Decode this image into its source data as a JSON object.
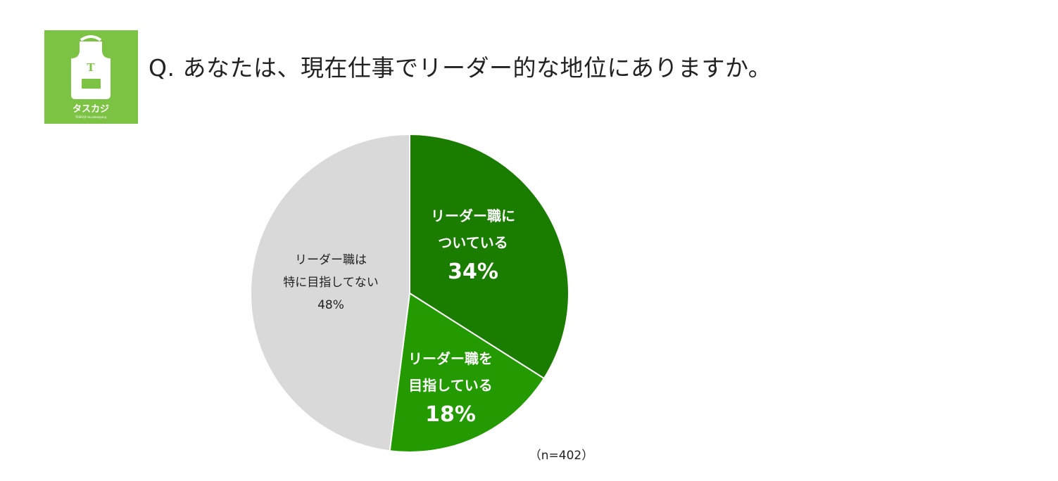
{
  "logo": {
    "icon": "apron-logo",
    "brand": "タスカジ",
    "tagline": "TASKAJI housekeeping",
    "letter": "T",
    "color": "#7cc243"
  },
  "question": "Q. あなたは、現在仕事でリーダー的な地位にありますか。",
  "sample_size": "（n=402）",
  "chart_data": {
    "type": "pie",
    "title": "Q. あなたは、現在仕事でリーダー的な地位にありますか。",
    "start": "12 o'clock",
    "direction": "clockwise",
    "slices": [
      {
        "label": "リーダー職についている",
        "label_lines": [
          "リーダー職に",
          "ついている"
        ],
        "value": 34,
        "value_label": "34%",
        "color": "#1a7d00"
      },
      {
        "label": "リーダー職を目指している",
        "label_lines": [
          "リーダー職を",
          "目指している"
        ],
        "value": 18,
        "value_label": "18%",
        "color": "#229a00"
      },
      {
        "label": "リーダー職は特に目指してない",
        "label_lines": [
          "リーダー職は",
          "特に目指してない"
        ],
        "value": 48,
        "value_label": "48%",
        "color": "#d9d9d9"
      }
    ],
    "n": 402
  }
}
